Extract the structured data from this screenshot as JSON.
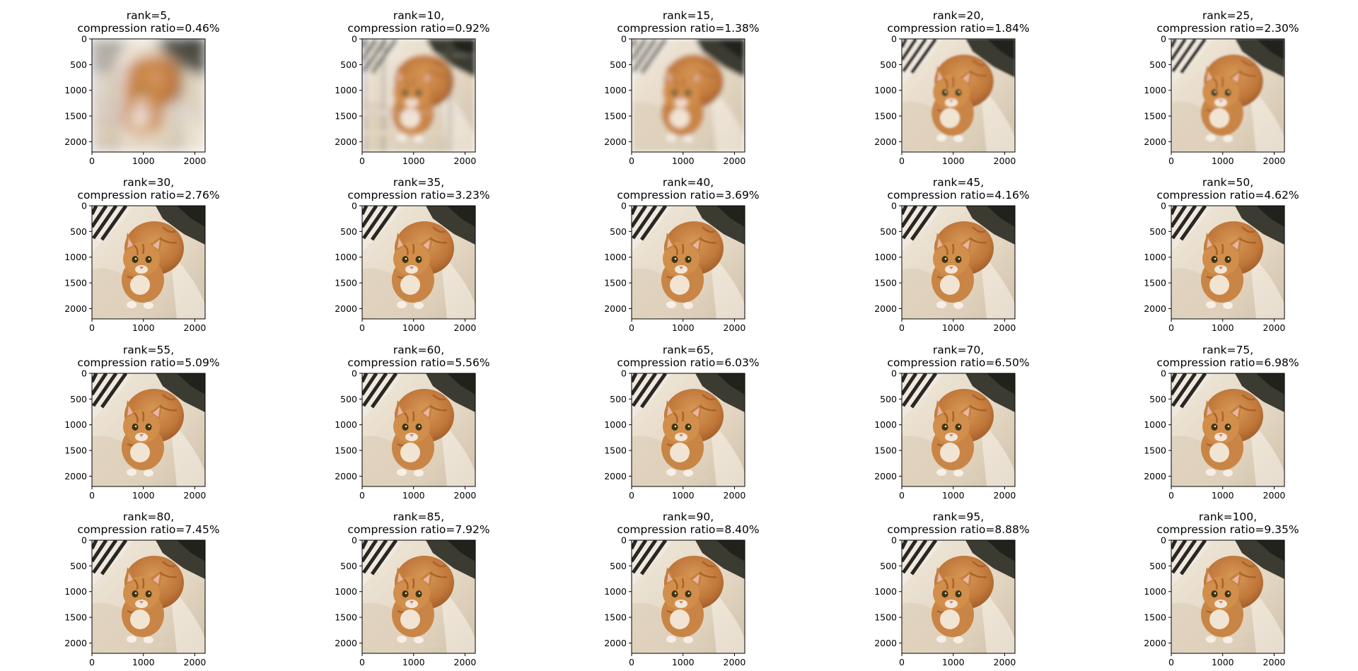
{
  "chart_data": {
    "type": "image-grid",
    "image_extent": [
      0,
      2200
    ],
    "xticks": [
      0,
      1000,
      2000
    ],
    "yticks": [
      0,
      500,
      1000,
      1500,
      2000
    ],
    "subplots": [
      {
        "title_line1": "rank=5,",
        "title_line2": "compression ratio=0.46%",
        "rank": 5,
        "compression_ratio_pct": 0.46
      },
      {
        "title_line1": "rank=10,",
        "title_line2": "compression ratio=0.92%",
        "rank": 10,
        "compression_ratio_pct": 0.92
      },
      {
        "title_line1": "rank=15,",
        "title_line2": "compression ratio=1.38%",
        "rank": 15,
        "compression_ratio_pct": 1.38
      },
      {
        "title_line1": "rank=20,",
        "title_line2": "compression ratio=1.84%",
        "rank": 20,
        "compression_ratio_pct": 1.84
      },
      {
        "title_line1": "rank=25,",
        "title_line2": "compression ratio=2.30%",
        "rank": 25,
        "compression_ratio_pct": 2.3
      },
      {
        "title_line1": "rank=30,",
        "title_line2": "compression ratio=2.76%",
        "rank": 30,
        "compression_ratio_pct": 2.76
      },
      {
        "title_line1": "rank=35,",
        "title_line2": "compression ratio=3.23%",
        "rank": 35,
        "compression_ratio_pct": 3.23
      },
      {
        "title_line1": "rank=40,",
        "title_line2": "compression ratio=3.69%",
        "rank": 40,
        "compression_ratio_pct": 3.69
      },
      {
        "title_line1": "rank=45,",
        "title_line2": "compression ratio=4.16%",
        "rank": 45,
        "compression_ratio_pct": 4.16
      },
      {
        "title_line1": "rank=50,",
        "title_line2": "compression ratio=4.62%",
        "rank": 50,
        "compression_ratio_pct": 4.62
      },
      {
        "title_line1": "rank=55,",
        "title_line2": "compression ratio=5.09%",
        "rank": 55,
        "compression_ratio_pct": 5.09
      },
      {
        "title_line1": "rank=60,",
        "title_line2": "compression ratio=5.56%",
        "rank": 60,
        "compression_ratio_pct": 5.56
      },
      {
        "title_line1": "rank=65,",
        "title_line2": "compression ratio=6.03%",
        "rank": 65,
        "compression_ratio_pct": 6.03
      },
      {
        "title_line1": "rank=70,",
        "title_line2": "compression ratio=6.50%",
        "rank": 70,
        "compression_ratio_pct": 6.5
      },
      {
        "title_line1": "rank=75,",
        "title_line2": "compression ratio=6.98%",
        "rank": 75,
        "compression_ratio_pct": 6.98
      },
      {
        "title_line1": "rank=80,",
        "title_line2": "compression ratio=7.45%",
        "rank": 80,
        "compression_ratio_pct": 7.45
      },
      {
        "title_line1": "rank=85,",
        "title_line2": "compression ratio=7.92%",
        "rank": 85,
        "compression_ratio_pct": 7.92
      },
      {
        "title_line1": "rank=90,",
        "title_line2": "compression ratio=8.40%",
        "rank": 90,
        "compression_ratio_pct": 8.4
      },
      {
        "title_line1": "rank=95,",
        "title_line2": "compression ratio=8.88%",
        "rank": 95,
        "compression_ratio_pct": 8.88
      },
      {
        "title_line1": "rank=100,",
        "title_line2": "compression ratio=9.35%",
        "rank": 100,
        "compression_ratio_pct": 9.35
      }
    ]
  }
}
